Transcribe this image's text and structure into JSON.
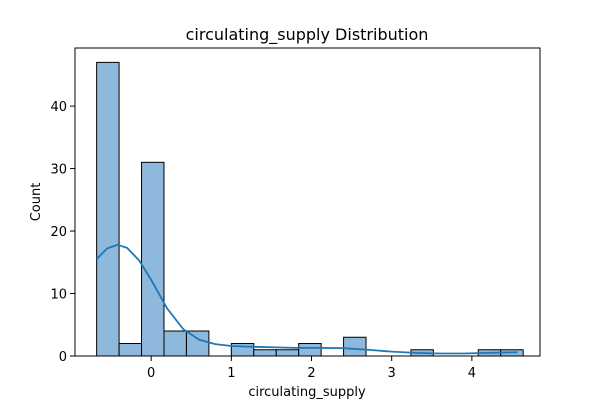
{
  "chart_data": {
    "type": "bar",
    "title": "circulating_supply Distribution",
    "xlabel": "circulating_supply",
    "ylabel": "Count",
    "xlim": [
      -0.95,
      4.85
    ],
    "ylim": [
      0,
      49.3
    ],
    "xticks": [
      0,
      1,
      2,
      3,
      4
    ],
    "yticks": [
      0,
      10,
      20,
      30,
      40
    ],
    "bin_edges": [
      -0.68,
      -0.4,
      -0.12,
      0.16,
      0.44,
      0.72,
      1.0,
      1.28,
      1.56,
      1.84,
      2.12,
      2.4,
      2.68,
      2.96,
      3.24,
      3.52,
      3.8,
      4.08,
      4.36,
      4.64
    ],
    "values": [
      47,
      2,
      31,
      4,
      4,
      0,
      2,
      1,
      1,
      2,
      0,
      3,
      0,
      0,
      1,
      0,
      0,
      1,
      1
    ],
    "kde": {
      "x": [
        -0.68,
        -0.55,
        -0.42,
        -0.3,
        -0.15,
        0.0,
        0.2,
        0.4,
        0.6,
        0.8,
        1.0,
        1.2,
        1.5,
        1.8,
        2.1,
        2.4,
        2.7,
        3.0,
        3.3,
        3.6,
        3.9,
        4.2,
        4.4,
        4.57
      ],
      "y": [
        15.5,
        17.2,
        17.8,
        17.3,
        15.3,
        12.2,
        7.6,
        4.3,
        2.6,
        1.9,
        1.6,
        1.5,
        1.4,
        1.3,
        1.3,
        1.25,
        1.0,
        0.7,
        0.5,
        0.4,
        0.4,
        0.5,
        0.55,
        0.6
      ]
    },
    "colors": {
      "bar_fill": "#8fb9dc",
      "bar_edge": "#000000",
      "kde_line": "#1f77b4"
    },
    "grid": false,
    "legend": "none"
  }
}
